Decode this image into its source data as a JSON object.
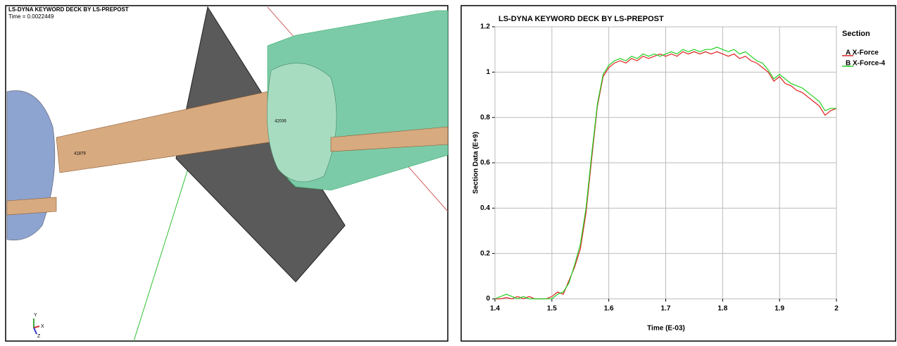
{
  "model_view": {
    "title": "LS-DYNA KEYWORD DECK BY LS-PREPOST",
    "time": "Time =   0.0022449",
    "node_labels": [
      "41879",
      "42036"
    ],
    "axes": [
      "Y",
      "X",
      "Z"
    ]
  },
  "chart_data": {
    "type": "line",
    "title": "LS-DYNA KEYWORD DECK BY LS-PREPOST",
    "x_label": "Time (E-03)",
    "y_label": "Section Data (E+9)",
    "legend_title": "Section",
    "x": [
      1.4,
      1.41,
      1.42,
      1.43,
      1.44,
      1.45,
      1.46,
      1.47,
      1.48,
      1.49,
      1.5,
      1.51,
      1.52,
      1.53,
      1.54,
      1.55,
      1.56,
      1.57,
      1.58,
      1.59,
      1.6,
      1.61,
      1.62,
      1.63,
      1.64,
      1.65,
      1.66,
      1.67,
      1.68,
      1.69,
      1.7,
      1.71,
      1.72,
      1.73,
      1.74,
      1.75,
      1.76,
      1.77,
      1.78,
      1.79,
      1.8,
      1.81,
      1.82,
      1.83,
      1.84,
      1.85,
      1.86,
      1.87,
      1.88,
      1.89,
      1.9,
      1.91,
      1.92,
      1.93,
      1.94,
      1.95,
      1.96,
      1.97,
      1.98,
      1.99,
      2.0
    ],
    "series": [
      {
        "name": "A X-Force",
        "color": "#e02020",
        "values": [
          0,
          0,
          0.005,
          0,
          0.01,
          0,
          0.01,
          0,
          0,
          0,
          0.01,
          0.03,
          0.02,
          0.08,
          0.14,
          0.22,
          0.38,
          0.62,
          0.85,
          0.98,
          1.02,
          1.04,
          1.05,
          1.04,
          1.06,
          1.05,
          1.07,
          1.06,
          1.07,
          1.08,
          1.07,
          1.08,
          1.07,
          1.09,
          1.08,
          1.09,
          1.08,
          1.09,
          1.08,
          1.09,
          1.08,
          1.07,
          1.08,
          1.06,
          1.07,
          1.05,
          1.04,
          1.02,
          1.0,
          0.96,
          0.98,
          0.95,
          0.94,
          0.92,
          0.91,
          0.89,
          0.87,
          0.85,
          0.81,
          0.83,
          0.84
        ]
      },
      {
        "name": "B X-Force-4",
        "color": "#20d020",
        "values": [
          0,
          0.01,
          0.02,
          0.01,
          0,
          0.01,
          0,
          0,
          0,
          0,
          0,
          0.02,
          0.03,
          0.07,
          0.15,
          0.24,
          0.4,
          0.64,
          0.86,
          0.99,
          1.03,
          1.05,
          1.06,
          1.05,
          1.07,
          1.06,
          1.08,
          1.07,
          1.08,
          1.07,
          1.08,
          1.09,
          1.08,
          1.1,
          1.09,
          1.1,
          1.09,
          1.1,
          1.1,
          1.11,
          1.1,
          1.09,
          1.1,
          1.08,
          1.09,
          1.07,
          1.05,
          1.04,
          1.01,
          0.97,
          0.99,
          0.97,
          0.95,
          0.94,
          0.93,
          0.91,
          0.89,
          0.87,
          0.83,
          0.84,
          0.84
        ]
      }
    ],
    "xlim": [
      1.4,
      2
    ],
    "xticks": [
      1.4,
      1.5,
      1.6,
      1.7,
      1.8,
      1.9,
      2
    ],
    "ylim": [
      0,
      1.2
    ],
    "yticks": [
      0,
      0.2,
      0.4,
      0.6,
      0.8,
      1,
      1.2
    ],
    "grid": true,
    "legend": "right"
  }
}
